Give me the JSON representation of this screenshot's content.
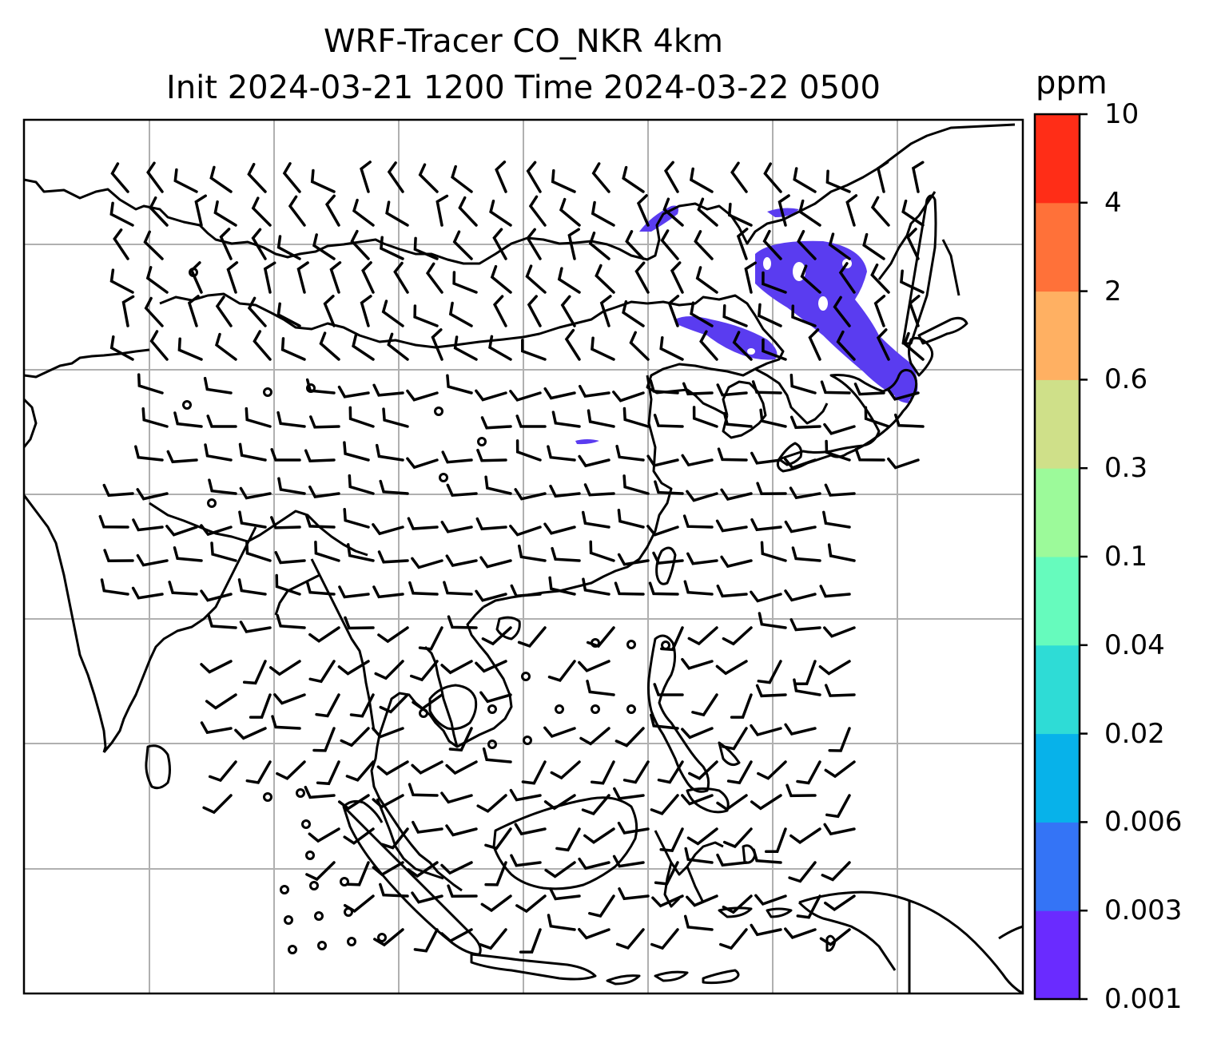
{
  "title_line1": "WRF-Tracer CO_NKR 4km",
  "title_line2": "Init 2024-03-21 1200 Time 2024-03-22 0500",
  "colorbar": {
    "unit": "ppm",
    "levels": [
      "0.001",
      "0.003",
      "0.006",
      "0.02",
      "0.04",
      "0.1",
      "0.3",
      "0.6",
      "2",
      "4",
      "10"
    ],
    "colors": [
      "#6a2bff",
      "#3474f6",
      "#07b2ea",
      "#2edcd6",
      "#66fbbd",
      "#9cfa9a",
      "#cfe089",
      "#ffb062",
      "#ff7139",
      "#ff2d17"
    ]
  },
  "map": {
    "plume_color": "#5a3cf0",
    "coastline_color": "#000000",
    "gridline_color": "#b0b0b0",
    "wind_barbs": "black"
  }
}
